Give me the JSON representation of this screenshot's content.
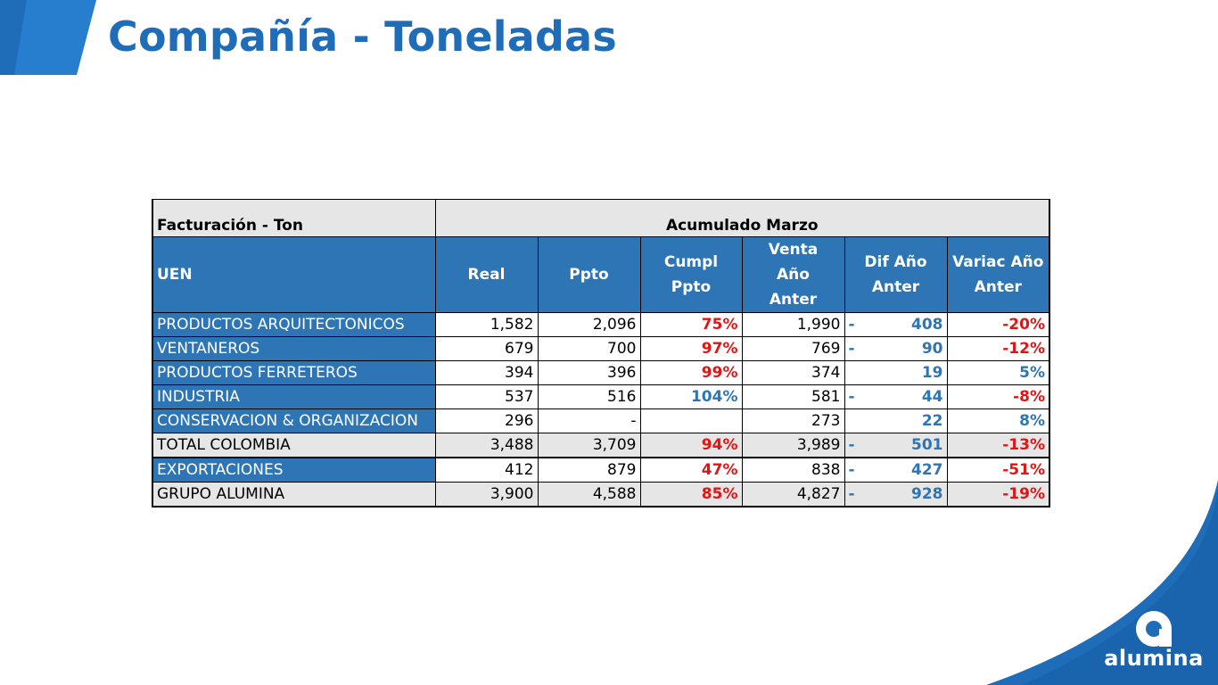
{
  "header": {
    "title": "Compañía - Toneladas"
  },
  "brand": {
    "logo_text": "alumina",
    "accent": "#1f6db8",
    "table_blue": "#2e75b6",
    "negative_red": "#e01515",
    "header_gray": "#e7e6e6"
  },
  "table": {
    "corner_label": "Facturación - Ton",
    "group_label": "Acumulado Marzo",
    "uen_label": "UEN",
    "columns": [
      "Real",
      "Ppto",
      "Cumpl Ppto",
      "Venta Año Anter",
      "Dif Año Anter",
      "Variac Año Anter"
    ],
    "rows": [
      {
        "label": "PRODUCTOS ARQUITECTONICOS",
        "real": "1,582",
        "ppto": "2,096",
        "cumpl": "75%",
        "venta": "1,990",
        "dif_sign": "-",
        "dif": "408",
        "variac": "-20%"
      },
      {
        "label": "VENTANEROS",
        "real": "679",
        "ppto": "700",
        "cumpl": "97%",
        "venta": "769",
        "dif_sign": "-",
        "dif": "90",
        "variac": "-12%"
      },
      {
        "label": "PRODUCTOS FERRETEROS",
        "real": "394",
        "ppto": "396",
        "cumpl": "99%",
        "venta": "374",
        "dif_sign": "",
        "dif": "19",
        "variac": "5%"
      },
      {
        "label": "INDUSTRIA",
        "real": "537",
        "ppto": "516",
        "cumpl": "104%",
        "venta": "581",
        "dif_sign": "-",
        "dif": "44",
        "variac": "-8%"
      },
      {
        "label": "CONSERVACION & ORGANIZACION",
        "real": "296",
        "ppto": "-",
        "cumpl": "",
        "venta": "273",
        "dif_sign": "",
        "dif": "22",
        "variac": "8%"
      },
      {
        "label": "TOTAL COLOMBIA",
        "real": "3,488",
        "ppto": "3,709",
        "cumpl": "94%",
        "venta": "3,989",
        "dif_sign": "-",
        "dif": "501",
        "variac": "-13%"
      },
      {
        "label": "EXPORTACIONES",
        "real": "412",
        "ppto": "879",
        "cumpl": "47%",
        "venta": "838",
        "dif_sign": "-",
        "dif": "427",
        "variac": "-51%"
      },
      {
        "label": "GRUPO ALUMINA",
        "real": "3,900",
        "ppto": "4,588",
        "cumpl": "85%",
        "venta": "4,827",
        "dif_sign": "-",
        "dif": "928",
        "variac": "-19%"
      }
    ]
  }
}
